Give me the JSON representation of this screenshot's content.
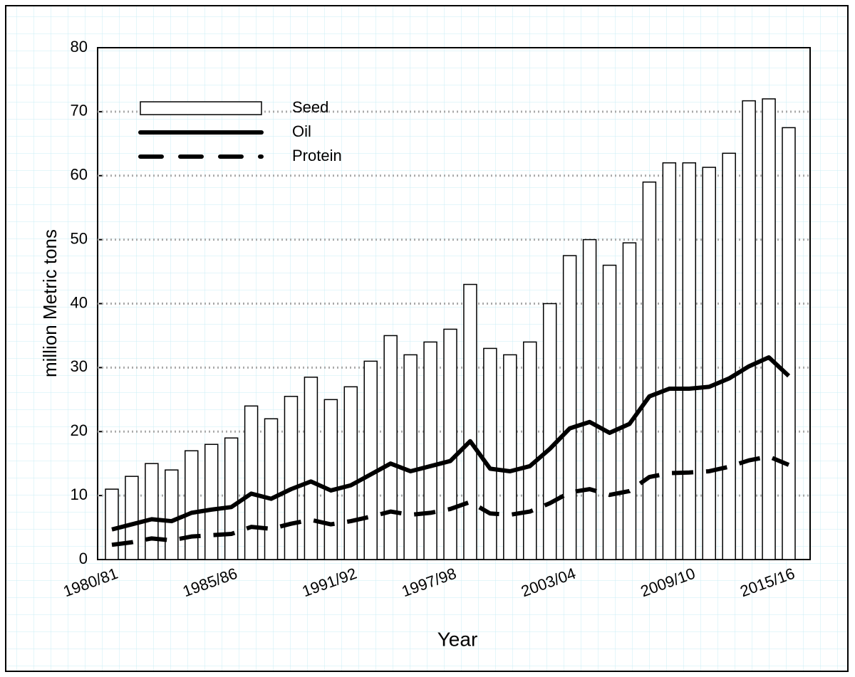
{
  "chart_data": {
    "type": "bar_line",
    "xlabel": "Year",
    "ylabel": "million Metric tons",
    "categories": [
      "1980/81",
      null,
      null,
      null,
      null,
      null,
      "1985/86",
      null,
      null,
      null,
      null,
      null,
      "1991/92",
      null,
      null,
      null,
      null,
      "1997/98",
      null,
      null,
      null,
      null,
      null,
      "2003/04",
      null,
      null,
      null,
      null,
      null,
      "2009/10",
      null,
      null,
      null,
      null,
      "2015/16"
    ],
    "series": [
      {
        "name": "Seed",
        "kind": "bar",
        "color": "#ffffff",
        "values": [
          11,
          13,
          15,
          14,
          17,
          18,
          19,
          24,
          22,
          25.5,
          28.5,
          25,
          27,
          31,
          35,
          32,
          34,
          36,
          43,
          33,
          32,
          34,
          40,
          47.5,
          50,
          46,
          49.5,
          59,
          62,
          62,
          61.3,
          63.5,
          71.7,
          72,
          67.5
        ]
      },
      {
        "name": "Oil",
        "kind": "line",
        "color": "#000000",
        "values": [
          4.7,
          5.5,
          6.3,
          6,
          7.3,
          7.8,
          8.2,
          10.3,
          9.5,
          11,
          12.2,
          10.8,
          11.6,
          13.3,
          15,
          13.8,
          14.6,
          15.4,
          18.5,
          14.2,
          13.8,
          14.6,
          17.3,
          20.5,
          21.5,
          19.8,
          21.2,
          25.5,
          26.7,
          26.7,
          27,
          28.3,
          30.2,
          31.6,
          28.7
        ]
      },
      {
        "name": "Protein",
        "kind": "dashed-line",
        "color": "#000000",
        "values": [
          2.3,
          2.7,
          3.3,
          3,
          3.6,
          3.8,
          4,
          5.1,
          4.8,
          5.6,
          6.2,
          5.5,
          6,
          6.7,
          7.5,
          7,
          7.3,
          7.9,
          9,
          7.2,
          7,
          7.5,
          8.8,
          10.5,
          11,
          10.1,
          10.7,
          12.9,
          13.5,
          13.6,
          13.8,
          14.5,
          15.5,
          16.1,
          14.8
        ]
      }
    ],
    "ylim": [
      0,
      80
    ],
    "yticks": [
      0,
      10,
      20,
      30,
      40,
      50,
      60,
      70,
      80
    ],
    "grid": true,
    "legend": "upper left"
  }
}
